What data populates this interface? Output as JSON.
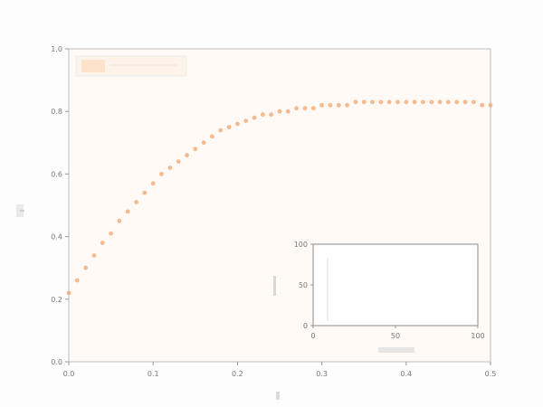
{
  "chart_data": [
    {
      "type": "scatter",
      "title": "",
      "xlabel": "",
      "ylabel": "",
      "xlim": [
        0.0,
        0.5
      ],
      "ylim": [
        0.0,
        1.0
      ],
      "x_ticks": [
        "0.0",
        "0.1",
        "0.2",
        "0.3",
        "0.4",
        "0.5"
      ],
      "y_ticks": [
        "0.0",
        "0.2",
        "0.4",
        "0.6",
        "0.8",
        "1.0"
      ],
      "grid": false,
      "legend": {
        "position": "top-left",
        "entries": []
      },
      "series": [
        {
          "color": "#f2a66b",
          "x": [
            0.0,
            0.01,
            0.02,
            0.03,
            0.04,
            0.05,
            0.06,
            0.07,
            0.08,
            0.09,
            0.1,
            0.11,
            0.12,
            0.13,
            0.14,
            0.15,
            0.16,
            0.17,
            0.18,
            0.19,
            0.2,
            0.21,
            0.22,
            0.23,
            0.24,
            0.25,
            0.26,
            0.27,
            0.28,
            0.29,
            0.3,
            0.31,
            0.32,
            0.33,
            0.34,
            0.35,
            0.36,
            0.37,
            0.38,
            0.39,
            0.4,
            0.41,
            0.42,
            0.43,
            0.44,
            0.45,
            0.46,
            0.47,
            0.48,
            0.49,
            0.5
          ],
          "y": [
            0.22,
            0.26,
            0.3,
            0.34,
            0.38,
            0.41,
            0.45,
            0.48,
            0.51,
            0.54,
            0.57,
            0.6,
            0.62,
            0.64,
            0.66,
            0.68,
            0.7,
            0.72,
            0.74,
            0.75,
            0.76,
            0.77,
            0.78,
            0.79,
            0.79,
            0.8,
            0.8,
            0.81,
            0.81,
            0.81,
            0.82,
            0.82,
            0.82,
            0.82,
            0.83,
            0.83,
            0.83,
            0.83,
            0.83,
            0.83,
            0.83,
            0.83,
            0.83,
            0.83,
            0.83,
            0.83,
            0.83,
            0.83,
            0.83,
            0.82,
            0.82
          ]
        }
      ]
    },
    {
      "type": "line",
      "title": "",
      "xlabel": "",
      "ylabel": "",
      "xlim": [
        0,
        100
      ],
      "ylim": [
        0,
        100
      ],
      "x_ticks": [
        "0",
        "50",
        "100"
      ],
      "y_ticks": [
        "0",
        "50",
        "100"
      ],
      "series": [
        {
          "color": "#dddddd",
          "x": [],
          "y": []
        }
      ]
    }
  ]
}
